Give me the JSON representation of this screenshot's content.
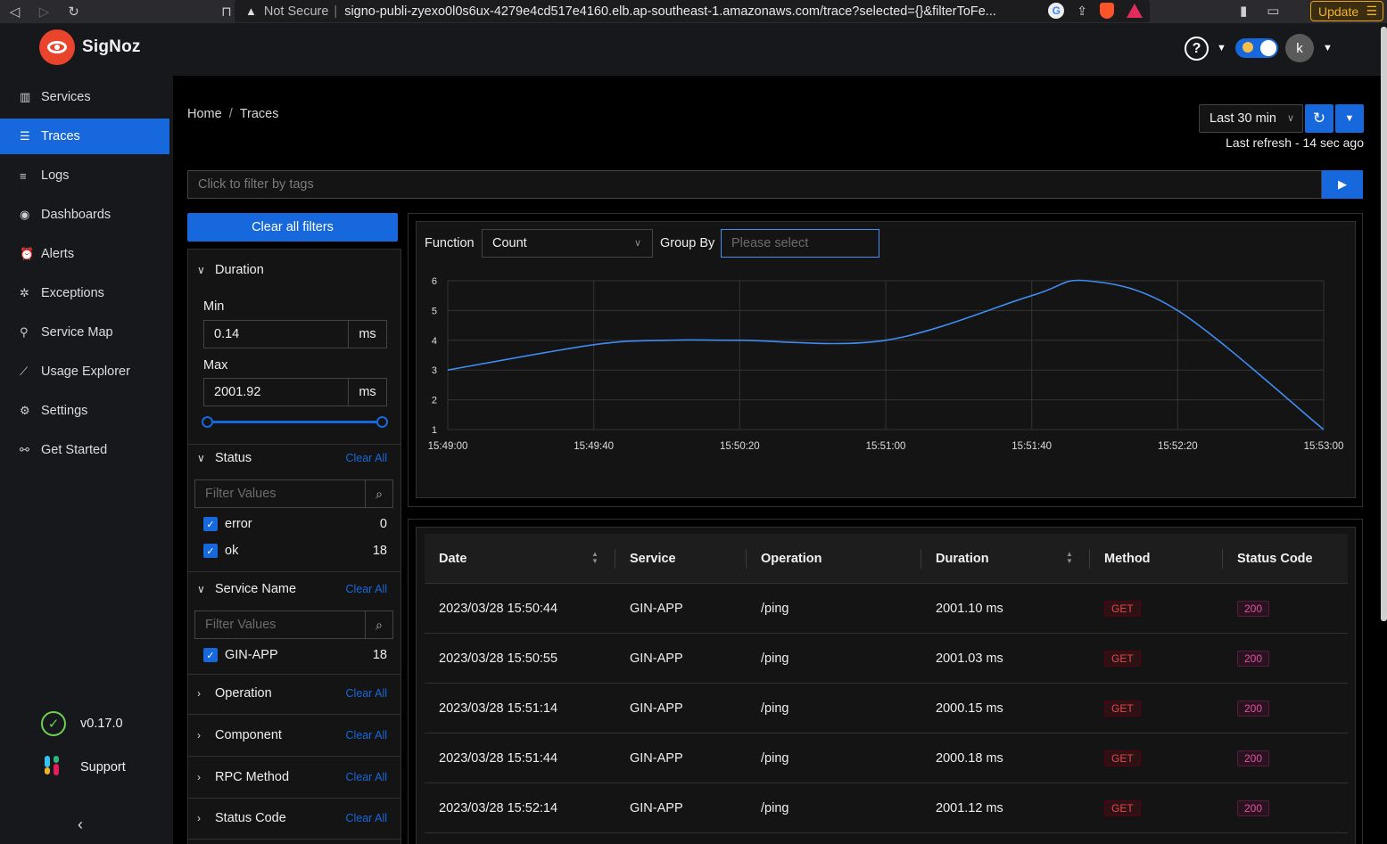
{
  "browser": {
    "not_secure": "Not Secure",
    "url": "signo-publi-zyexo0l0s6ux-4279e4cd517e4160.elb.ap-southeast-1.amazonaws.com/trace?selected={}&filterToFe...",
    "update_label": "Update"
  },
  "app": {
    "brand": "SigNoz",
    "avatar_letter": "k"
  },
  "sidebar": {
    "items": [
      {
        "label": "Services",
        "icon": "bar-chart-icon"
      },
      {
        "label": "Traces",
        "icon": "menu-icon"
      },
      {
        "label": "Logs",
        "icon": "align-left-icon"
      },
      {
        "label": "Dashboards",
        "icon": "dashboard-icon"
      },
      {
        "label": "Alerts",
        "icon": "alarm-icon"
      },
      {
        "label": "Exceptions",
        "icon": "bug-icon"
      },
      {
        "label": "Service Map",
        "icon": "deployment-icon"
      },
      {
        "label": "Usage Explorer",
        "icon": "line-chart-icon"
      },
      {
        "label": "Settings",
        "icon": "gear-icon"
      },
      {
        "label": "Get Started",
        "icon": "api-icon"
      }
    ],
    "active": "Traces",
    "version": "v0.17.0",
    "support": "Support"
  },
  "header": {
    "breadcrumb_home": "Home",
    "breadcrumb_sep": "/",
    "breadcrumb_current": "Traces",
    "time_range": "Last 30 min",
    "last_refresh": "Last refresh - 14 sec ago",
    "tag_filter_placeholder": "Click to filter by tags"
  },
  "filters": {
    "clear_all": "Clear all filters",
    "duration": {
      "title": "Duration",
      "min_label": "Min",
      "min_value": "0.14",
      "max_label": "Max",
      "max_value": "2001.92",
      "unit": "ms"
    },
    "clear_label": "Clear All",
    "search_placeholder": "Filter Values",
    "status": {
      "title": "Status",
      "options": [
        {
          "label": "error",
          "count": "0"
        },
        {
          "label": "ok",
          "count": "18"
        }
      ]
    },
    "service_name": {
      "title": "Service Name",
      "options": [
        {
          "label": "GIN-APP",
          "count": "18"
        }
      ]
    },
    "collapsed": [
      "Operation",
      "Component",
      "RPC Method",
      "Status Code"
    ]
  },
  "chart_controls": {
    "function_label": "Function",
    "function_value": "Count",
    "group_by_label": "Group By",
    "group_by_placeholder": "Please select"
  },
  "chart_data": {
    "type": "line",
    "x": [
      "15:49:00",
      "15:49:40",
      "15:50:20",
      "15:51:00",
      "15:51:40",
      "15:52:20",
      "15:53:00"
    ],
    "series": [
      {
        "x": [
          "15:49:00",
          "15:49:40",
          "15:50:00",
          "15:50:20",
          "15:51:00",
          "15:51:40",
          "15:51:55",
          "15:52:20",
          "15:53:00"
        ],
        "values": [
          3,
          3.85,
          4,
          4,
          4,
          5.5,
          6,
          5,
          1
        ]
      }
    ],
    "ylim": [
      1,
      6
    ],
    "yticks": [
      1,
      2,
      3,
      4,
      5,
      6
    ],
    "grid": true,
    "line_color": "#3f8cf1"
  },
  "table": {
    "columns": [
      "Date",
      "Service",
      "Operation",
      "Duration",
      "Method",
      "Status Code"
    ],
    "rows": [
      {
        "date": "2023/03/28 15:50:44",
        "service": "GIN-APP",
        "operation": "/ping",
        "duration": "2001.10 ms",
        "method": "GET",
        "status": "200"
      },
      {
        "date": "2023/03/28 15:50:55",
        "service": "GIN-APP",
        "operation": "/ping",
        "duration": "2001.03 ms",
        "method": "GET",
        "status": "200"
      },
      {
        "date": "2023/03/28 15:51:14",
        "service": "GIN-APP",
        "operation": "/ping",
        "duration": "2000.15 ms",
        "method": "GET",
        "status": "200"
      },
      {
        "date": "2023/03/28 15:51:44",
        "service": "GIN-APP",
        "operation": "/ping",
        "duration": "2000.18 ms",
        "method": "GET",
        "status": "200"
      },
      {
        "date": "2023/03/28 15:52:14",
        "service": "GIN-APP",
        "operation": "/ping",
        "duration": "2001.12 ms",
        "method": "GET",
        "status": "200"
      }
    ]
  }
}
